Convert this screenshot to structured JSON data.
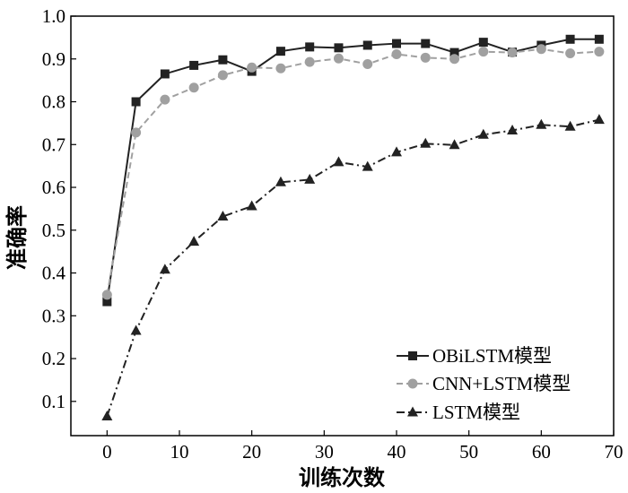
{
  "chart_data": {
    "type": "line",
    "xlabel": "训练次数",
    "ylabel": "准确率",
    "xlim": [
      -5,
      70
    ],
    "ylim": [
      0.02,
      1.0
    ],
    "xticks": [
      0,
      10,
      20,
      30,
      40,
      50,
      60,
      70
    ],
    "yticks": [
      0.1,
      0.2,
      0.3,
      0.4,
      0.5,
      0.6,
      0.7,
      0.8,
      0.9,
      1.0
    ],
    "xtick_labels": [
      "0",
      "10",
      "20",
      "30",
      "40",
      "50",
      "60",
      "70"
    ],
    "ytick_labels": [
      "0.1",
      "0.2",
      "0.3",
      "0.4",
      "0.5",
      "0.6",
      "0.7",
      "0.8",
      "0.9",
      "1.0"
    ],
    "grid": false,
    "legend_position": "bottom-right",
    "x": [
      0,
      4,
      8,
      12,
      16,
      20,
      24,
      28,
      32,
      36,
      40,
      44,
      48,
      52,
      56,
      60,
      64,
      68
    ],
    "series": [
      {
        "name": "OBiLSTM模型",
        "color": "#222222",
        "line": "solid",
        "marker": "square",
        "values": [
          0.333,
          0.8,
          0.865,
          0.885,
          0.898,
          0.871,
          0.918,
          0.928,
          0.926,
          0.932,
          0.936,
          0.936,
          0.915,
          0.939,
          0.916,
          0.932,
          0.946,
          0.946
        ]
      },
      {
        "name": "CNN+LSTM模型",
        "color": "#a0a0a0",
        "line": "dashed",
        "marker": "circle",
        "values": [
          0.349,
          0.728,
          0.805,
          0.833,
          0.862,
          0.88,
          0.878,
          0.893,
          0.901,
          0.888,
          0.911,
          0.903,
          0.9,
          0.917,
          0.915,
          0.923,
          0.913,
          0.917
        ]
      },
      {
        "name": "LSTM模型",
        "color": "#222222",
        "line": "dashdot",
        "marker": "triangle",
        "values": [
          0.065,
          0.265,
          0.408,
          0.473,
          0.532,
          0.556,
          0.612,
          0.618,
          0.659,
          0.648,
          0.682,
          0.702,
          0.699,
          0.723,
          0.733,
          0.746,
          0.742,
          0.758
        ]
      }
    ]
  }
}
